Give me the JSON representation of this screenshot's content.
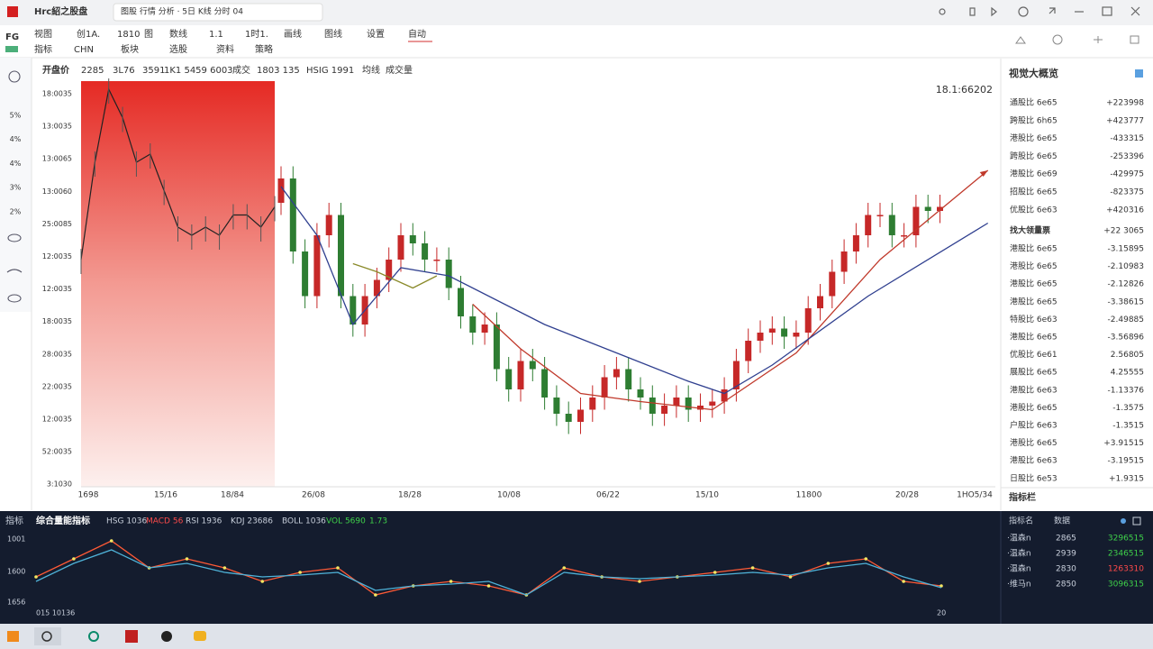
{
  "window": {
    "app_title": "Hrc紹之股盘",
    "tab": "图股 行情 分析 · 5日 K线 分时 04"
  },
  "toolbar": {
    "row1": [
      "视图",
      "创1A.",
      "1810",
      "图",
      "数线",
      "1.1",
      "1时1.",
      "画线",
      "图线",
      "设置",
      "自动"
    ],
    "row2": [
      "指标",
      "CHN",
      "板块",
      "选股",
      "资料",
      "策略"
    ],
    "logo": "FG"
  },
  "sidebar": [
    "5%",
    "4%",
    "4%",
    "3%",
    "2%"
  ],
  "chart_header": {
    "label": "开盘价",
    "items": [
      {
        "text": "2285",
        "color": "#333"
      },
      {
        "text": "3L76",
        "color": "#333"
      },
      {
        "text": "3591",
        "color": "#333"
      },
      {
        "text": "1K1 5459 6003",
        "color": "#d32f2f"
      },
      {
        "text": "成交",
        "color": "#333"
      },
      {
        "text": "1803 135",
        "color": "#d32f2f"
      },
      {
        "text": "HSIG 1991",
        "color": "#333"
      },
      {
        "text": "均线",
        "color": "#999"
      },
      {
        "text": "成交量",
        "color": "#d32f2f"
      }
    ]
  },
  "main_chart": {
    "type": "candlestick",
    "price_label": "18.1:66202",
    "y_labels": [
      "18:0035",
      "13:0035",
      "13:0065",
      "13:0060",
      "25:0085",
      "12:0035",
      "12:0035",
      "18:0035",
      "28:0035",
      "22:0035",
      "12:0035",
      "52:0035",
      "3:1030"
    ],
    "x_labels": [
      "1698",
      "15/16",
      "18/84",
      "26/08",
      "18/28",
      "10/08",
      "06/22",
      "15/10",
      "11800",
      "20/28",
      "1HO5/34"
    ],
    "up_color": "#c62828",
    "down_color": "#2e7d32",
    "history": [
      56,
      80,
      98,
      91,
      80,
      82,
      73,
      64,
      62,
      64,
      62,
      67,
      67,
      64,
      69
    ],
    "candles": [
      [
        70,
        79,
        67,
        76
      ],
      [
        76,
        79,
        55,
        58
      ],
      [
        58,
        61,
        44,
        47
      ],
      [
        47,
        65,
        44,
        62
      ],
      [
        62,
        70,
        59,
        67
      ],
      [
        67,
        70,
        44,
        47
      ],
      [
        47,
        50,
        37,
        40
      ],
      [
        40,
        50,
        37,
        47
      ],
      [
        47,
        54,
        44,
        51
      ],
      [
        51,
        59,
        48,
        56
      ],
      [
        56,
        65,
        53,
        62
      ],
      [
        62,
        65,
        57,
        60
      ],
      [
        60,
        63,
        53,
        56
      ],
      [
        56,
        59,
        53,
        56
      ],
      [
        56,
        59,
        46,
        49
      ],
      [
        49,
        52,
        39,
        42
      ],
      [
        42,
        45,
        35,
        38
      ],
      [
        38,
        43,
        35,
        40
      ],
      [
        40,
        43,
        26,
        29
      ],
      [
        29,
        32,
        21,
        24
      ],
      [
        24,
        34,
        21,
        31
      ],
      [
        31,
        34,
        26,
        29
      ],
      [
        29,
        32,
        19,
        22
      ],
      [
        22,
        25,
        15,
        18
      ],
      [
        18,
        21,
        13,
        16
      ],
      [
        16,
        22,
        13,
        19
      ],
      [
        19,
        25,
        16,
        22
      ],
      [
        22,
        30,
        19,
        27
      ],
      [
        27,
        32,
        24,
        29
      ],
      [
        29,
        32,
        21,
        24
      ],
      [
        24,
        27,
        19,
        22
      ],
      [
        22,
        25,
        15,
        18
      ],
      [
        18,
        23,
        15,
        20
      ],
      [
        20,
        25,
        17,
        22
      ],
      [
        22,
        25,
        16,
        19
      ],
      [
        19,
        23,
        16,
        20
      ],
      [
        20,
        24,
        17,
        21
      ],
      [
        21,
        27,
        18,
        24
      ],
      [
        24,
        34,
        21,
        31
      ],
      [
        31,
        39,
        28,
        36
      ],
      [
        36,
        41,
        33,
        38
      ],
      [
        38,
        42,
        35,
        39
      ],
      [
        39,
        42,
        34,
        37
      ],
      [
        37,
        41,
        34,
        38
      ],
      [
        38,
        47,
        35,
        44
      ],
      [
        44,
        50,
        41,
        47
      ],
      [
        47,
        56,
        44,
        53
      ],
      [
        53,
        61,
        50,
        58
      ],
      [
        58,
        65,
        55,
        62
      ],
      [
        62,
        70,
        59,
        67
      ],
      [
        67,
        70,
        64,
        67
      ],
      [
        67,
        70,
        59,
        62
      ],
      [
        62,
        65,
        59,
        62
      ],
      [
        62,
        72,
        59,
        69
      ],
      [
        69,
        72,
        65,
        68
      ],
      [
        68,
        72,
        65,
        69
      ]
    ],
    "ma_lines": [
      {
        "color": "#c0392b",
        "x": [
          16,
          20,
          25,
          30,
          36,
          43,
          50,
          59
        ],
        "values": [
          45,
          34,
          23,
          21,
          19,
          33,
          56,
          78
        ]
      },
      {
        "color": "#2f3f8f",
        "x": [
          0,
          3,
          6,
          10,
          14,
          22,
          28,
          34,
          37,
          41,
          49,
          59
        ],
        "values": [
          74,
          62,
          40,
          54,
          52,
          40,
          33,
          26,
          23,
          30,
          47,
          65
        ]
      },
      {
        "color": "#8a8a2a",
        "x": [
          6,
          8,
          11,
          13
        ],
        "values": [
          55,
          53,
          49,
          52
        ]
      }
    ]
  },
  "right_panel": {
    "title": "视觉大概览",
    "rows": [
      {
        "name": "通股比 6e65",
        "value": "+223998",
        "color": "#2e9d3a"
      },
      {
        "name": "跨股比 6h65",
        "value": "+423777",
        "color": "#2e9d3a"
      },
      {
        "name": "港股比 6e65",
        "value": "-433315",
        "color": "#2e9d3a"
      },
      {
        "name": "跨股比 6e65",
        "value": "-253396",
        "color": "#2e9d3a"
      },
      {
        "name": "港股比 6e69",
        "value": "-429975",
        "color": "#2e9d3a"
      },
      {
        "name": "招股比 6e65",
        "value": "-823375",
        "color": "#2e9d3a"
      },
      {
        "name": "优股比 6e63",
        "value": "+420316",
        "color": "#2e9d3a"
      }
    ],
    "section": {
      "name": "找大领量票",
      "value": "+22 3065",
      "color": "#2e9d3a"
    },
    "rows2": [
      {
        "name": "港股比 6e65",
        "value": "-3.15895",
        "color": "#2e9d3a"
      },
      {
        "name": "港股比 6e65",
        "value": "-2.10983",
        "color": "#2e9d3a"
      },
      {
        "name": "港股比 6e65",
        "value": "-2.12826",
        "color": "#2e9d3a"
      },
      {
        "name": "港股比 6e65",
        "value": "-3.38615",
        "color": "#2e9d3a"
      },
      {
        "name": "特股比 6e63",
        "value": "-2.49885",
        "color": "#d32f2f"
      },
      {
        "name": "港股比 6e65",
        "value": "-3.56896",
        "color": "#d32f2f"
      },
      {
        "name": "优股比 6e61",
        "value": "2.56805",
        "color": "#d32f2f"
      },
      {
        "name": "展股比 6e65",
        "value": "4.25555",
        "color": "#d32f2f"
      },
      {
        "name": "港股比 6e63",
        "value": "-1.13376",
        "color": "#d32f2f"
      },
      {
        "name": "港股比 6e65",
        "value": "-1.3575",
        "color": "#d32f2f"
      },
      {
        "name": "户股比 6e63",
        "value": "-1.3515",
        "color": "#d32f2f"
      },
      {
        "name": "港股比 6e65",
        "value": "+3.91515",
        "color": "#2e9d3a"
      },
      {
        "name": "港股比 6e63",
        "value": "-3.19515",
        "color": "#2e9d3a"
      },
      {
        "name": "日股比 6e53",
        "value": "+1.9315",
        "color": "#2e9d3a"
      }
    ],
    "footer": "指标栏"
  },
  "indicator": {
    "type": "line",
    "label": "指标",
    "title": "综合量能指标",
    "items": [
      {
        "text": "HSG 1036",
        "color": "#c8cfdb"
      },
      {
        "text": "MACD 56",
        "color": "#ff4a4a"
      },
      {
        "text": "RSI 1936",
        "color": "#c8cfdb"
      },
      {
        "text": "KDJ 23686",
        "color": "#c8cfdb"
      },
      {
        "text": "BOLL 1036",
        "color": "#c8cfdb"
      },
      {
        "text": "VOL 5690",
        "color": "#3fd14a"
      },
      {
        "text": "1.73",
        "color": "#3fd14a"
      }
    ],
    "y_labels": [
      "1001",
      "1600",
      "1656"
    ],
    "x_labels": [
      "015 10136",
      "20"
    ],
    "series": [
      {
        "color": "#ff5a36",
        "values": [
          40,
          60,
          80,
          50,
          60,
          50,
          35,
          45,
          50,
          20,
          30,
          35,
          30,
          20,
          50,
          40,
          35,
          40,
          45,
          50,
          40,
          55,
          60,
          35,
          30
        ]
      },
      {
        "color": "#4fb3d9",
        "values": [
          35,
          55,
          70,
          50,
          55,
          45,
          40,
          42,
          45,
          25,
          30,
          32,
          35,
          20,
          45,
          40,
          38,
          40,
          42,
          45,
          42,
          50,
          55,
          40,
          28
        ]
      }
    ]
  },
  "bottom_table": {
    "header": [
      "指标名",
      "数据"
    ],
    "rows": [
      {
        "name": "·温森n",
        "num": "2865",
        "value": "3296515",
        "color": "#3fd14a"
      },
      {
        "name": "·温森n",
        "num": "2939",
        "value": "2346515",
        "color": "#3fd14a"
      },
      {
        "name": "·温森n",
        "num": "2830",
        "value": "1263310",
        "color": "#ff4a4a"
      },
      {
        "name": "·维马n",
        "num": "2850",
        "value": "3096315",
        "color": "#3fd14a"
      }
    ]
  }
}
